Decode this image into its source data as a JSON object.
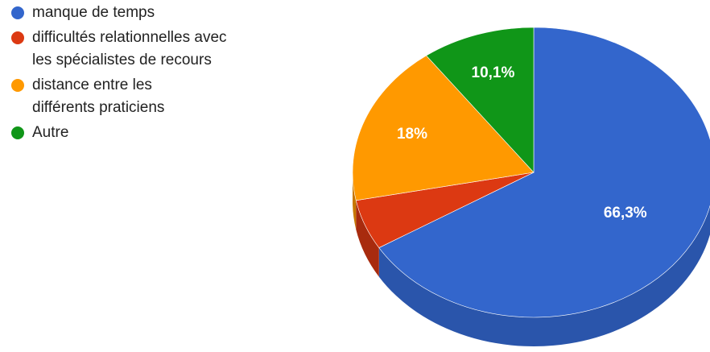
{
  "chart_data": {
    "type": "pie",
    "title": "",
    "legend_position": "left",
    "start_angle_deg": 0,
    "three_d": true,
    "slices": [
      {
        "label": "manque de temps",
        "value": 66.3,
        "display": "66,3%",
        "color": "#3366cc",
        "side_color": "#2a55ab"
      },
      {
        "label": "difficultés relationnelles avec les spécialistes de recours",
        "value": 5.6,
        "display": "",
        "color": "#dc3912",
        "side_color": "#a82b0e"
      },
      {
        "label": "distance entre les différents praticiens",
        "value": 18.0,
        "display": "18%",
        "color": "#ff9900",
        "side_color": "#c77700"
      },
      {
        "label": "Autre",
        "value": 10.1,
        "display": "10,1%",
        "color": "#109618",
        "side_color": "#0c7012"
      }
    ]
  }
}
